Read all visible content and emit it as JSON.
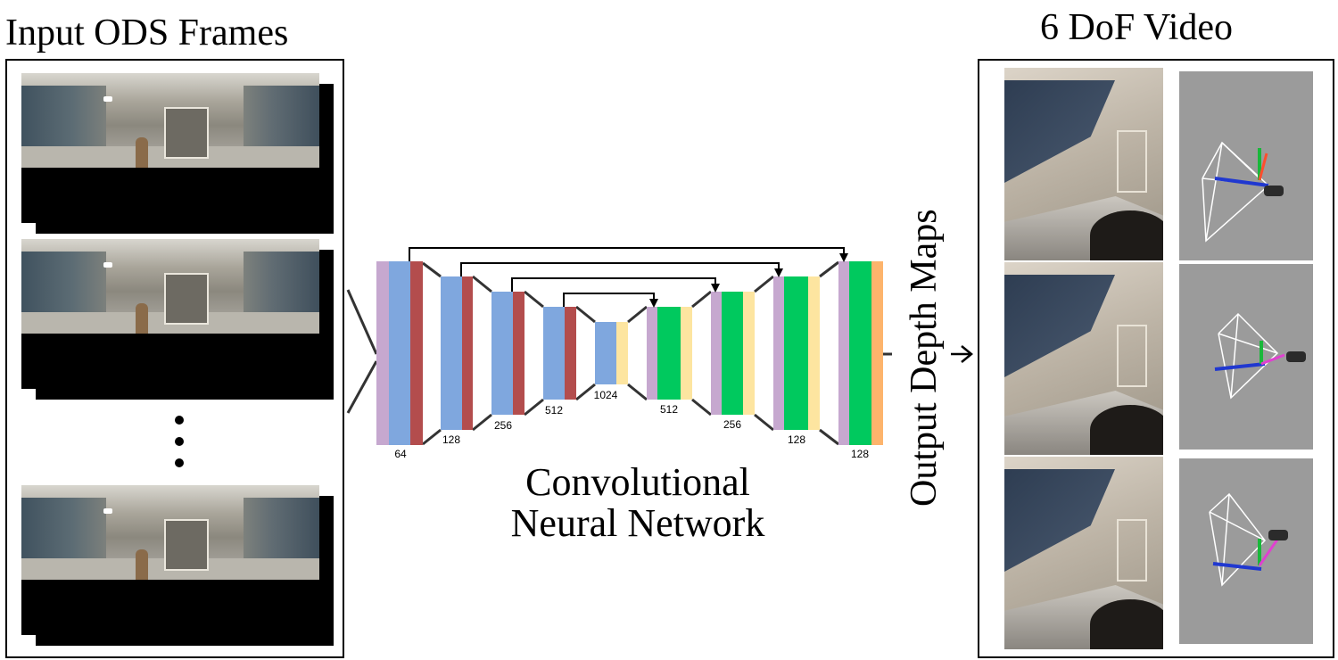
{
  "titles": {
    "input": "Input ODS Frames",
    "output": "6 DoF Video"
  },
  "cnn": {
    "line1": "Convolutional",
    "line2": "Neural Network",
    "encoder_labels": [
      "64",
      "128",
      "256",
      "512",
      "1024"
    ],
    "decoder_labels": [
      "512",
      "256",
      "128",
      "128"
    ],
    "colors": {
      "purple": "#c6a8cf",
      "blue": "#7fa7de",
      "red": "#b34d4d",
      "green": "#00c95e",
      "yellow": "#fde5a0",
      "orange": "#fdb46c"
    }
  },
  "output_label": "Output Depth Maps",
  "ellipsis": "⋮"
}
